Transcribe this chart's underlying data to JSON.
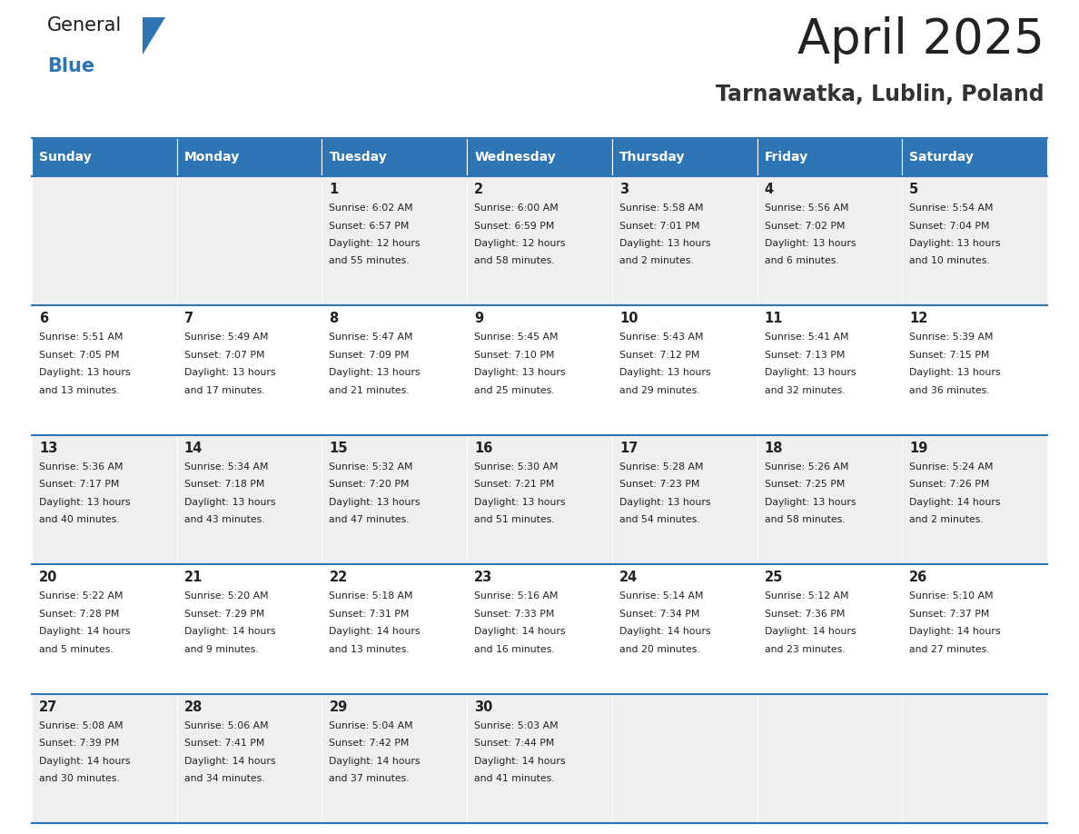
{
  "title": "April 2025",
  "subtitle": "Tarnawatka, Lublin, Poland",
  "days_of_week": [
    "Sunday",
    "Monday",
    "Tuesday",
    "Wednesday",
    "Thursday",
    "Friday",
    "Saturday"
  ],
  "header_bg": "#2E75B6",
  "header_text": "#FFFFFF",
  "cell_bg_odd": "#EFEFEF",
  "cell_bg_even": "#FFFFFF",
  "text_color": "#222222",
  "title_color": "#222222",
  "subtitle_color": "#333333",
  "logo_black": "#1a1a1a",
  "logo_blue": "#2E75B6",
  "row_line_color": "#2E75B6",
  "calendar": [
    [
      {
        "day": null,
        "sunrise": null,
        "sunset": null,
        "daylight": null
      },
      {
        "day": null,
        "sunrise": null,
        "sunset": null,
        "daylight": null
      },
      {
        "day": 1,
        "sunrise": "6:02 AM",
        "sunset": "6:57 PM",
        "daylight": "12 hours and 55 minutes."
      },
      {
        "day": 2,
        "sunrise": "6:00 AM",
        "sunset": "6:59 PM",
        "daylight": "12 hours and 58 minutes."
      },
      {
        "day": 3,
        "sunrise": "5:58 AM",
        "sunset": "7:01 PM",
        "daylight": "13 hours and 2 minutes."
      },
      {
        "day": 4,
        "sunrise": "5:56 AM",
        "sunset": "7:02 PM",
        "daylight": "13 hours and 6 minutes."
      },
      {
        "day": 5,
        "sunrise": "5:54 AM",
        "sunset": "7:04 PM",
        "daylight": "13 hours and 10 minutes."
      }
    ],
    [
      {
        "day": 6,
        "sunrise": "5:51 AM",
        "sunset": "7:05 PM",
        "daylight": "13 hours and 13 minutes."
      },
      {
        "day": 7,
        "sunrise": "5:49 AM",
        "sunset": "7:07 PM",
        "daylight": "13 hours and 17 minutes."
      },
      {
        "day": 8,
        "sunrise": "5:47 AM",
        "sunset": "7:09 PM",
        "daylight": "13 hours and 21 minutes."
      },
      {
        "day": 9,
        "sunrise": "5:45 AM",
        "sunset": "7:10 PM",
        "daylight": "13 hours and 25 minutes."
      },
      {
        "day": 10,
        "sunrise": "5:43 AM",
        "sunset": "7:12 PM",
        "daylight": "13 hours and 29 minutes."
      },
      {
        "day": 11,
        "sunrise": "5:41 AM",
        "sunset": "7:13 PM",
        "daylight": "13 hours and 32 minutes."
      },
      {
        "day": 12,
        "sunrise": "5:39 AM",
        "sunset": "7:15 PM",
        "daylight": "13 hours and 36 minutes."
      }
    ],
    [
      {
        "day": 13,
        "sunrise": "5:36 AM",
        "sunset": "7:17 PM",
        "daylight": "13 hours and 40 minutes."
      },
      {
        "day": 14,
        "sunrise": "5:34 AM",
        "sunset": "7:18 PM",
        "daylight": "13 hours and 43 minutes."
      },
      {
        "day": 15,
        "sunrise": "5:32 AM",
        "sunset": "7:20 PM",
        "daylight": "13 hours and 47 minutes."
      },
      {
        "day": 16,
        "sunrise": "5:30 AM",
        "sunset": "7:21 PM",
        "daylight": "13 hours and 51 minutes."
      },
      {
        "day": 17,
        "sunrise": "5:28 AM",
        "sunset": "7:23 PM",
        "daylight": "13 hours and 54 minutes."
      },
      {
        "day": 18,
        "sunrise": "5:26 AM",
        "sunset": "7:25 PM",
        "daylight": "13 hours and 58 minutes."
      },
      {
        "day": 19,
        "sunrise": "5:24 AM",
        "sunset": "7:26 PM",
        "daylight": "14 hours and 2 minutes."
      }
    ],
    [
      {
        "day": 20,
        "sunrise": "5:22 AM",
        "sunset": "7:28 PM",
        "daylight": "14 hours and 5 minutes."
      },
      {
        "day": 21,
        "sunrise": "5:20 AM",
        "sunset": "7:29 PM",
        "daylight": "14 hours and 9 minutes."
      },
      {
        "day": 22,
        "sunrise": "5:18 AM",
        "sunset": "7:31 PM",
        "daylight": "14 hours and 13 minutes."
      },
      {
        "day": 23,
        "sunrise": "5:16 AM",
        "sunset": "7:33 PM",
        "daylight": "14 hours and 16 minutes."
      },
      {
        "day": 24,
        "sunrise": "5:14 AM",
        "sunset": "7:34 PM",
        "daylight": "14 hours and 20 minutes."
      },
      {
        "day": 25,
        "sunrise": "5:12 AM",
        "sunset": "7:36 PM",
        "daylight": "14 hours and 23 minutes."
      },
      {
        "day": 26,
        "sunrise": "5:10 AM",
        "sunset": "7:37 PM",
        "daylight": "14 hours and 27 minutes."
      }
    ],
    [
      {
        "day": 27,
        "sunrise": "5:08 AM",
        "sunset": "7:39 PM",
        "daylight": "14 hours and 30 minutes."
      },
      {
        "day": 28,
        "sunrise": "5:06 AM",
        "sunset": "7:41 PM",
        "daylight": "14 hours and 34 minutes."
      },
      {
        "day": 29,
        "sunrise": "5:04 AM",
        "sunset": "7:42 PM",
        "daylight": "14 hours and 37 minutes."
      },
      {
        "day": 30,
        "sunrise": "5:03 AM",
        "sunset": "7:44 PM",
        "daylight": "14 hours and 41 minutes."
      },
      {
        "day": null,
        "sunrise": null,
        "sunset": null,
        "daylight": null
      },
      {
        "day": null,
        "sunrise": null,
        "sunset": null,
        "daylight": null
      },
      {
        "day": null,
        "sunrise": null,
        "sunset": null,
        "daylight": null
      }
    ]
  ]
}
